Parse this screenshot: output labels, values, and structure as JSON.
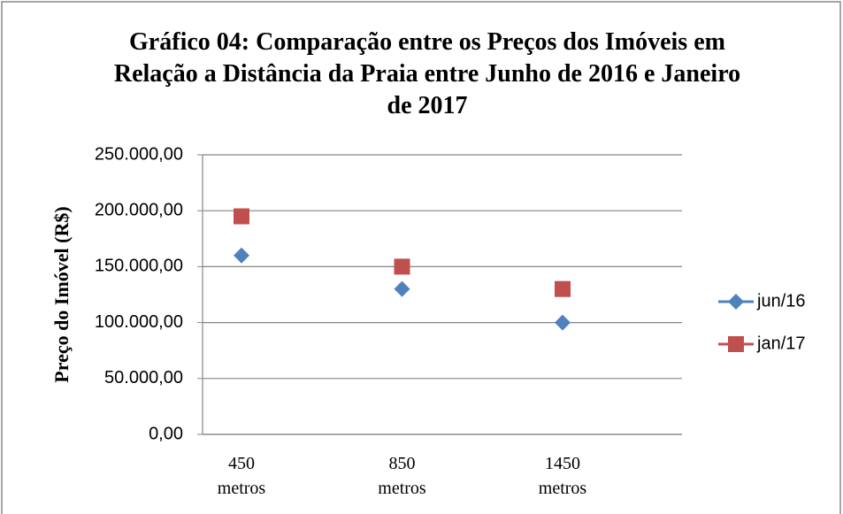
{
  "chart_data": {
    "type": "scatter",
    "title": "Gráfico 04: Comparação entre os Preços dos Imóveis em Relação a Distância da Praia entre Junho de 2016 e Janeiro de 2017",
    "y_label": "Preço do Imóvel (R$)",
    "categories": [
      "450 metros",
      "850 metros",
      "1450 metros"
    ],
    "series": [
      {
        "name": "jun/16",
        "color": "#4f81bd",
        "marker": "diamond",
        "values": [
          160000,
          130000,
          100000
        ]
      },
      {
        "name": "jan/17",
        "color": "#c0504d",
        "marker": "square",
        "values": [
          195000,
          150000,
          130000
        ]
      }
    ],
    "ylim": [
      0,
      250000
    ],
    "yticks": [
      {
        "value": 0,
        "label": "0,00"
      },
      {
        "value": 50000,
        "label": "50.000,00"
      },
      {
        "value": 100000,
        "label": "100.000,00"
      },
      {
        "value": 150000,
        "label": "150.000,00"
      },
      {
        "value": 200000,
        "label": "200.000,00"
      },
      {
        "value": 250000,
        "label": "250.000,00"
      }
    ],
    "grid": true,
    "legend": "right"
  }
}
